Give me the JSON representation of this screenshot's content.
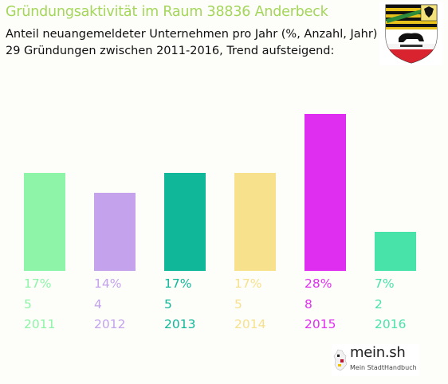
{
  "chart_data": {
    "type": "bar",
    "title": "Gründungsaktivität im Raum 38836 Anderbeck",
    "subtitle_lines": [
      "Anteil neuangemeldeter Unternehmen pro Jahr (%, Anzahl, Jahr)",
      "29 Gründungen zwischen 2011-2016, Trend aufsteigend:"
    ],
    "categories": [
      "2011",
      "2012",
      "2013",
      "2014",
      "2015",
      "2016"
    ],
    "values": [
      5,
      4,
      5,
      5,
      8,
      2
    ],
    "percent_labels": [
      "17%",
      "14%",
      "17%",
      "17%",
      "28%",
      "7%"
    ],
    "colors": [
      "#8ef5a8",
      "#c4a3ec",
      "#10b899",
      "#f7e18d",
      "#e02ef0",
      "#48e3a9"
    ],
    "title_color": "#a4d65a"
  },
  "crest": {
    "name": "coat-of-arms-icon"
  },
  "logo": {
    "main": "mein.sh",
    "sub": "Mein StadtHandbuch"
  }
}
